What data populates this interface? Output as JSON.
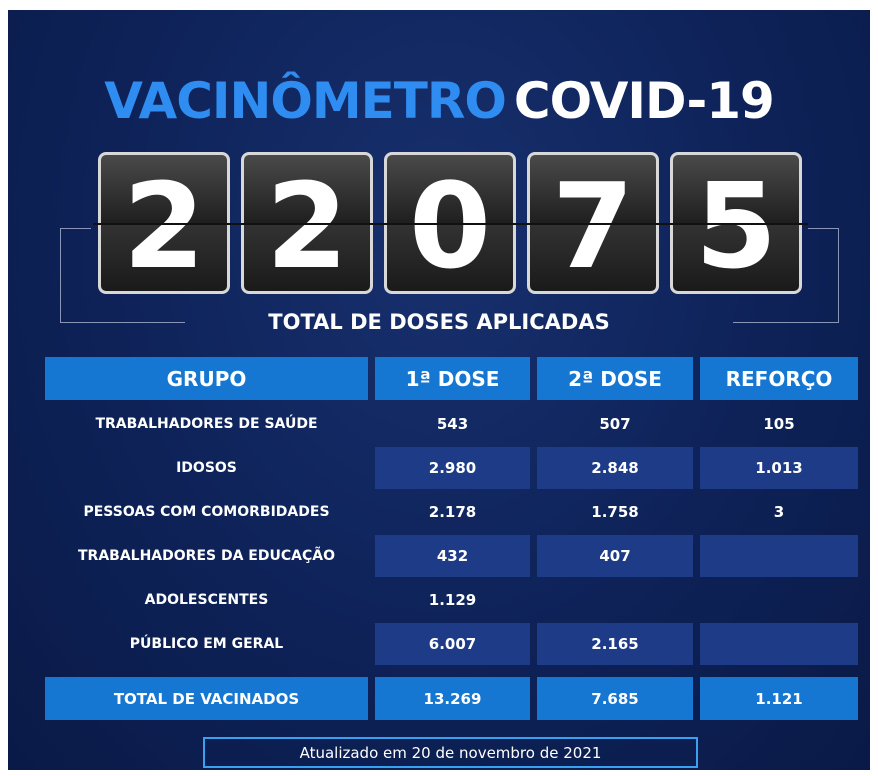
{
  "title": {
    "part1": "VACINÔMETRO",
    "part2": "COVID-19"
  },
  "counter": [
    "2",
    "2",
    "0",
    "7",
    "5"
  ],
  "subtitle": "TOTAL DE DOSES APLICADAS",
  "table": {
    "header": [
      "GRUPO",
      "1ª DOSE",
      "2ª DOSE",
      "REFORÇO"
    ],
    "rows": [
      [
        "TRABALHADORES DE SAÚDE",
        "543",
        "507",
        "105"
      ],
      [
        "IDOSOS",
        "2.980",
        "2.848",
        "1.013"
      ],
      [
        "PESSOAS COM COMORBIDADES",
        "2.178",
        "1.758",
        "3"
      ],
      [
        "TRABALHADORES DA EDUCAÇÃO",
        "432",
        "407",
        null
      ],
      [
        "ADOLESCENTES",
        "1.129",
        null,
        null
      ],
      [
        "PÚBLICO EM GERAL",
        "6.007",
        "2.165",
        null
      ]
    ],
    "total": [
      "TOTAL DE VACINADOS",
      "13.269",
      "7.685",
      "1.121"
    ]
  },
  "footer": "Atualizado em  20 de novembro de 2021"
}
